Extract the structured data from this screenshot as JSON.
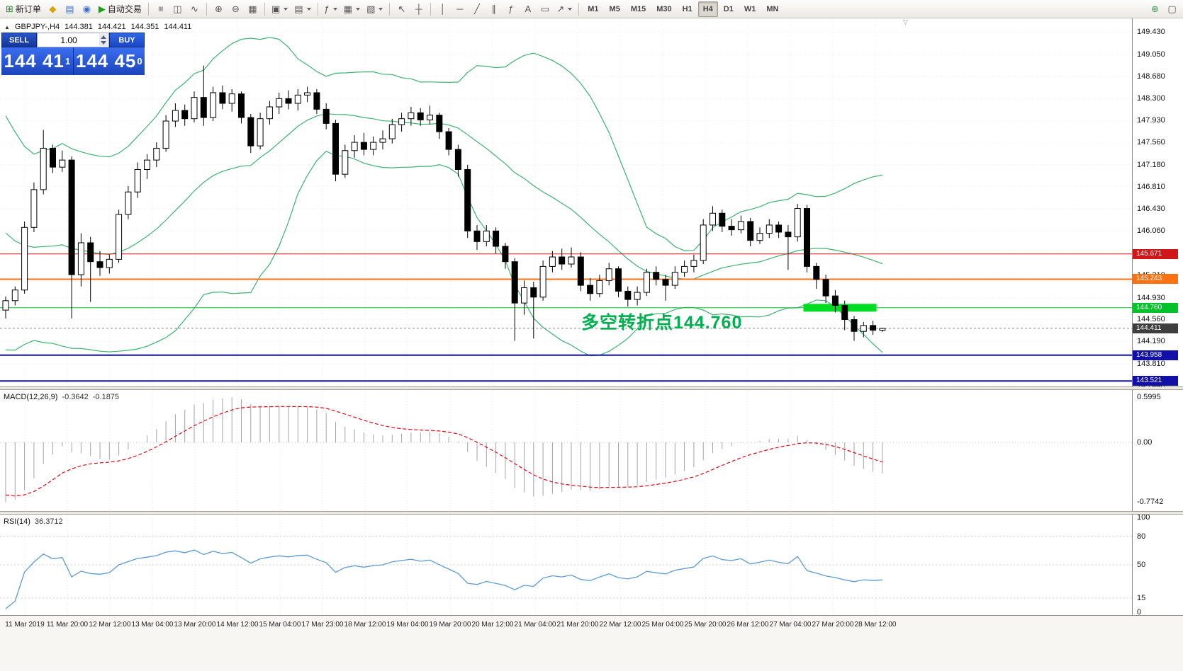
{
  "icons": {
    "one_click_collapse": "▲",
    "chart_shift_marker": "▽"
  },
  "toolbar": {
    "active_timeframe": "H4",
    "timeframes": [
      "M1",
      "M5",
      "M15",
      "M30",
      "H1",
      "H4",
      "D1",
      "W1",
      "MN"
    ],
    "groups": [
      {
        "items": [
          {
            "name": "new-order",
            "glyph": "⊞",
            "color": "#1f8a1f",
            "label": "新订单"
          },
          {
            "name": "metaeditor",
            "glyph": "◆",
            "color": "#dba309"
          },
          {
            "name": "market-watch",
            "glyph": "▤",
            "color": "#3b6fd6"
          },
          {
            "name": "navigator",
            "glyph": "◉",
            "color": "#3b6fd6"
          },
          {
            "name": "auto-trading",
            "glyph": "▶",
            "color": "#13a313",
            "label": "自动交易"
          }
        ]
      },
      {
        "items": [
          {
            "name": "bar-chart",
            "glyph": "≡",
            "rot": true
          },
          {
            "name": "candlestick-chart",
            "glyph": "◫"
          },
          {
            "name": "line-chart",
            "glyph": "∿"
          }
        ]
      },
      {
        "items": [
          {
            "name": "zoom-in",
            "glyph": "⊕"
          },
          {
            "name": "zoom-out",
            "glyph": "⊖"
          },
          {
            "name": "tile-windows",
            "glyph": "▦"
          }
        ]
      },
      {
        "items": [
          {
            "name": "new-chart",
            "glyph": "▣",
            "caret": true
          },
          {
            "name": "profiles",
            "glyph": "▤",
            "caret": true
          }
        ]
      },
      {
        "items": [
          {
            "name": "indicators",
            "glyph": "ƒ",
            "caret": true
          },
          {
            "name": "periods",
            "glyph": "▦",
            "caret": true
          },
          {
            "name": "templates",
            "glyph": "▧",
            "caret": true
          }
        ]
      },
      {
        "items": [
          {
            "name": "cursor",
            "glyph": "↖"
          },
          {
            "name": "crosshair",
            "glyph": "┼"
          }
        ]
      },
      {
        "items": [
          {
            "name": "vertical-line",
            "glyph": "│"
          },
          {
            "name": "horizontal-line",
            "glyph": "─"
          },
          {
            "name": "trendline",
            "glyph": "╱"
          },
          {
            "name": "equidistant-channel",
            "glyph": "∥"
          },
          {
            "name": "fibonacci",
            "glyph": "ƒ"
          },
          {
            "name": "text",
            "glyph": "A"
          },
          {
            "name": "text-label",
            "glyph": "▭"
          },
          {
            "name": "arrows",
            "glyph": "↗",
            "caret": true
          }
        ]
      },
      {
        "timeframes": true,
        "items": []
      },
      {
        "align": "right",
        "items": [
          {
            "name": "search",
            "glyph": "⊕",
            "color": "#2f9e44"
          },
          {
            "name": "popup-prices",
            "glyph": "▢",
            "color": "#555555"
          }
        ]
      }
    ]
  },
  "chart_header": {
    "symbol": "GBPJPY-,H4",
    "open": "144.381",
    "high": "144.421",
    "low": "144.351",
    "close": "144.411"
  },
  "one_click": {
    "sell_label": "SELL",
    "buy_label": "BUY",
    "volume": "1.00",
    "sell_price_big": "144 41",
    "sell_price_sup": "1",
    "buy_price_big": "144 45",
    "buy_price_sup": "0"
  },
  "annotation": {
    "text": "多空转折点144.760",
    "color": "#00b050"
  },
  "price_axis": {
    "ticks": [
      "149.430",
      "149.050",
      "148.680",
      "148.300",
      "147.930",
      "147.560",
      "147.180",
      "146.810",
      "146.430",
      "146.060",
      "145.690",
      "145.310",
      "144.930",
      "144.560",
      "144.190",
      "143.810",
      "143.440"
    ]
  },
  "hlines": [
    {
      "label": "145.671",
      "price": 145.671,
      "color": "#d01616",
      "width": 1
    },
    {
      "label": "145.243",
      "price": 145.243,
      "color": "#ff7212",
      "width": 2
    },
    {
      "label": "144.760",
      "price": 144.76,
      "color": "#00c22a",
      "width": 1
    },
    {
      "label": "143.958",
      "price": 143.958,
      "color": "#1010a8",
      "width": 2
    },
    {
      "label": "143.521",
      "price": 143.521,
      "color": "#1010a8",
      "width": 2
    }
  ],
  "bid": {
    "label": "144.411",
    "price": 144.411,
    "tag_color": "#3f3f3f",
    "line_color": "#888888"
  },
  "highlight_segment": {
    "price": 144.76,
    "from_index": 85,
    "to_index": 92,
    "color": "#00dd22",
    "thickness": 11
  },
  "macd": {
    "label": "MACD(12,26,9)",
    "value_main": "-0.3642",
    "value_signal": "-0.1875",
    "axis": [
      "0.5995",
      "0.00",
      "-0.7742"
    ],
    "histogram_color": "#a3a3a3",
    "signal_color": "#e30613"
  },
  "rsi": {
    "label": "RSI(14)",
    "value": "36.3712",
    "axis": [
      "100",
      "80",
      "50",
      "15",
      "0"
    ],
    "levels": [
      80,
      50,
      15
    ],
    "line_color": "#5b9bd5"
  },
  "time_axis": {
    "labels": [
      "11 Mar 2019",
      "11 Mar 20:00",
      "12 Mar 12:00",
      "13 Mar 04:00",
      "13 Mar 20:00",
      "14 Mar 12:00",
      "15 Mar 04:00",
      "17 Mar 23:00",
      "18 Mar 12:00",
      "19 Mar 04:00",
      "19 Mar 20:00",
      "20 Mar 12:00",
      "21 Mar 04:00",
      "21 Mar 20:00",
      "22 Mar 12:00",
      "25 Mar 04:00",
      "25 Mar 20:00",
      "26 Mar 12:00",
      "27 Mar 04:00",
      "27 Mar 20:00",
      "28 Mar 12:00"
    ]
  },
  "chart_data": {
    "type": "candlestick",
    "title": "GBPJPY-,H4",
    "timeframe": "H4",
    "visible_range": {
      "high": 149.43,
      "low": 143.44
    },
    "bull_color": "#ffffff",
    "bear_color": "#000000",
    "outline_color": "#000000",
    "bollinger": {
      "period": 20,
      "deviation": 2,
      "color": "#3cb371"
    },
    "indicator_warmup_closes": [
      147.9,
      147.8,
      147.6,
      147.4,
      147.2,
      147.0,
      146.8,
      146.6,
      146.4,
      146.2,
      146.0,
      145.8,
      145.6,
      145.4,
      145.2,
      145.1,
      145.0,
      144.9,
      144.85,
      144.8
    ],
    "ohlc": [
      [
        144.72,
        144.95,
        144.58,
        144.88
      ],
      [
        144.88,
        145.12,
        144.8,
        145.06
      ],
      [
        145.06,
        146.22,
        145.0,
        146.12
      ],
      [
        146.12,
        146.88,
        146.04,
        146.76
      ],
      [
        146.76,
        147.77,
        146.68,
        147.46
      ],
      [
        147.46,
        147.52,
        147.04,
        147.14
      ],
      [
        147.14,
        147.42,
        147.06,
        147.26
      ],
      [
        147.26,
        147.32,
        144.58,
        145.32
      ],
      [
        145.32,
        146.02,
        145.12,
        145.86
      ],
      [
        145.86,
        145.96,
        144.86,
        145.54
      ],
      [
        145.54,
        145.72,
        145.3,
        145.44
      ],
      [
        145.44,
        145.66,
        145.34,
        145.58
      ],
      [
        145.58,
        146.42,
        145.52,
        146.34
      ],
      [
        146.34,
        146.82,
        146.26,
        146.72
      ],
      [
        146.72,
        147.22,
        146.62,
        147.1
      ],
      [
        147.1,
        147.36,
        146.94,
        147.26
      ],
      [
        147.26,
        147.56,
        147.14,
        147.46
      ],
      [
        147.46,
        148.02,
        147.4,
        147.92
      ],
      [
        147.92,
        148.22,
        147.82,
        148.1
      ],
      [
        148.1,
        148.2,
        147.84,
        147.96
      ],
      [
        147.96,
        148.42,
        147.9,
        148.32
      ],
      [
        148.32,
        148.86,
        147.84,
        147.98
      ],
      [
        147.98,
        148.5,
        147.92,
        148.4
      ],
      [
        148.4,
        148.52,
        148.12,
        148.22
      ],
      [
        148.22,
        148.46,
        148.08,
        148.38
      ],
      [
        148.38,
        148.42,
        147.88,
        147.98
      ],
      [
        147.98,
        148.04,
        147.38,
        147.5
      ],
      [
        147.5,
        148.06,
        147.44,
        147.96
      ],
      [
        147.96,
        148.26,
        147.86,
        148.16
      ],
      [
        148.16,
        148.4,
        148.04,
        148.3
      ],
      [
        148.3,
        148.44,
        148.12,
        148.22
      ],
      [
        148.22,
        148.46,
        148.1,
        148.36
      ],
      [
        148.36,
        148.5,
        148.24,
        148.4
      ],
      [
        148.4,
        148.46,
        148.04,
        148.12
      ],
      [
        148.12,
        148.22,
        147.78,
        147.88
      ],
      [
        147.88,
        147.94,
        146.9,
        147.02
      ],
      [
        147.02,
        147.52,
        146.96,
        147.42
      ],
      [
        147.42,
        147.68,
        147.3,
        147.56
      ],
      [
        147.56,
        147.72,
        147.34,
        147.44
      ],
      [
        147.44,
        147.66,
        147.34,
        147.56
      ],
      [
        147.56,
        147.76,
        147.44,
        147.62
      ],
      [
        147.62,
        147.96,
        147.54,
        147.86
      ],
      [
        147.86,
        148.06,
        147.74,
        147.96
      ],
      [
        147.96,
        148.16,
        147.84,
        148.06
      ],
      [
        148.06,
        148.14,
        147.84,
        147.94
      ],
      [
        147.94,
        148.18,
        147.86,
        148.02
      ],
      [
        148.02,
        148.06,
        147.62,
        147.74
      ],
      [
        147.74,
        147.8,
        147.34,
        147.44
      ],
      [
        147.44,
        147.52,
        146.98,
        147.1
      ],
      [
        147.1,
        147.18,
        145.94,
        146.06
      ],
      [
        146.06,
        146.16,
        145.74,
        145.88
      ],
      [
        145.88,
        146.16,
        145.8,
        146.06
      ],
      [
        146.06,
        146.12,
        145.68,
        145.8
      ],
      [
        145.8,
        145.86,
        145.42,
        145.54
      ],
      [
        145.54,
        145.6,
        144.2,
        144.84
      ],
      [
        144.84,
        145.22,
        144.64,
        145.1
      ],
      [
        145.1,
        145.2,
        144.24,
        144.94
      ],
      [
        144.94,
        145.56,
        144.88,
        145.46
      ],
      [
        145.46,
        145.72,
        145.36,
        145.62
      ],
      [
        145.62,
        145.76,
        145.4,
        145.5
      ],
      [
        145.5,
        145.78,
        145.44,
        145.62
      ],
      [
        145.62,
        145.7,
        145.04,
        145.14
      ],
      [
        145.14,
        145.26,
        144.88,
        145.0
      ],
      [
        145.0,
        145.32,
        144.94,
        145.22
      ],
      [
        145.22,
        145.52,
        145.14,
        145.42
      ],
      [
        145.42,
        145.46,
        144.94,
        145.04
      ],
      [
        145.04,
        145.12,
        144.78,
        144.9
      ],
      [
        144.9,
        145.12,
        144.8,
        145.02
      ],
      [
        145.02,
        145.42,
        144.96,
        145.36
      ],
      [
        145.36,
        145.46,
        145.14,
        145.24
      ],
      [
        145.24,
        145.32,
        144.88,
        145.14
      ],
      [
        145.14,
        145.46,
        145.08,
        145.36
      ],
      [
        145.36,
        145.56,
        145.28,
        145.46
      ],
      [
        145.46,
        145.66,
        145.36,
        145.56
      ],
      [
        145.56,
        146.26,
        145.5,
        146.16
      ],
      [
        146.16,
        146.48,
        146.06,
        146.36
      ],
      [
        146.36,
        146.42,
        146.04,
        146.14
      ],
      [
        146.14,
        146.26,
        145.98,
        146.08
      ],
      [
        146.08,
        146.32,
        146.02,
        146.22
      ],
      [
        146.22,
        146.28,
        145.8,
        145.9
      ],
      [
        145.9,
        146.12,
        145.84,
        146.02
      ],
      [
        146.02,
        146.26,
        145.94,
        146.16
      ],
      [
        146.16,
        146.22,
        145.94,
        146.04
      ],
      [
        146.04,
        146.16,
        145.4,
        145.96
      ],
      [
        145.96,
        146.52,
        145.88,
        146.44
      ],
      [
        146.44,
        146.5,
        145.36,
        145.46
      ],
      [
        145.46,
        145.52,
        145.08,
        145.24
      ],
      [
        145.24,
        145.32,
        144.84,
        144.96
      ],
      [
        144.96,
        145.06,
        144.68,
        144.8
      ],
      [
        144.8,
        144.88,
        144.38,
        144.56
      ],
      [
        144.56,
        144.62,
        144.2,
        144.36
      ],
      [
        144.36,
        144.52,
        144.26,
        144.46
      ],
      [
        144.46,
        144.54,
        144.3,
        144.38
      ],
      [
        144.381,
        144.421,
        144.351,
        144.411
      ]
    ]
  }
}
